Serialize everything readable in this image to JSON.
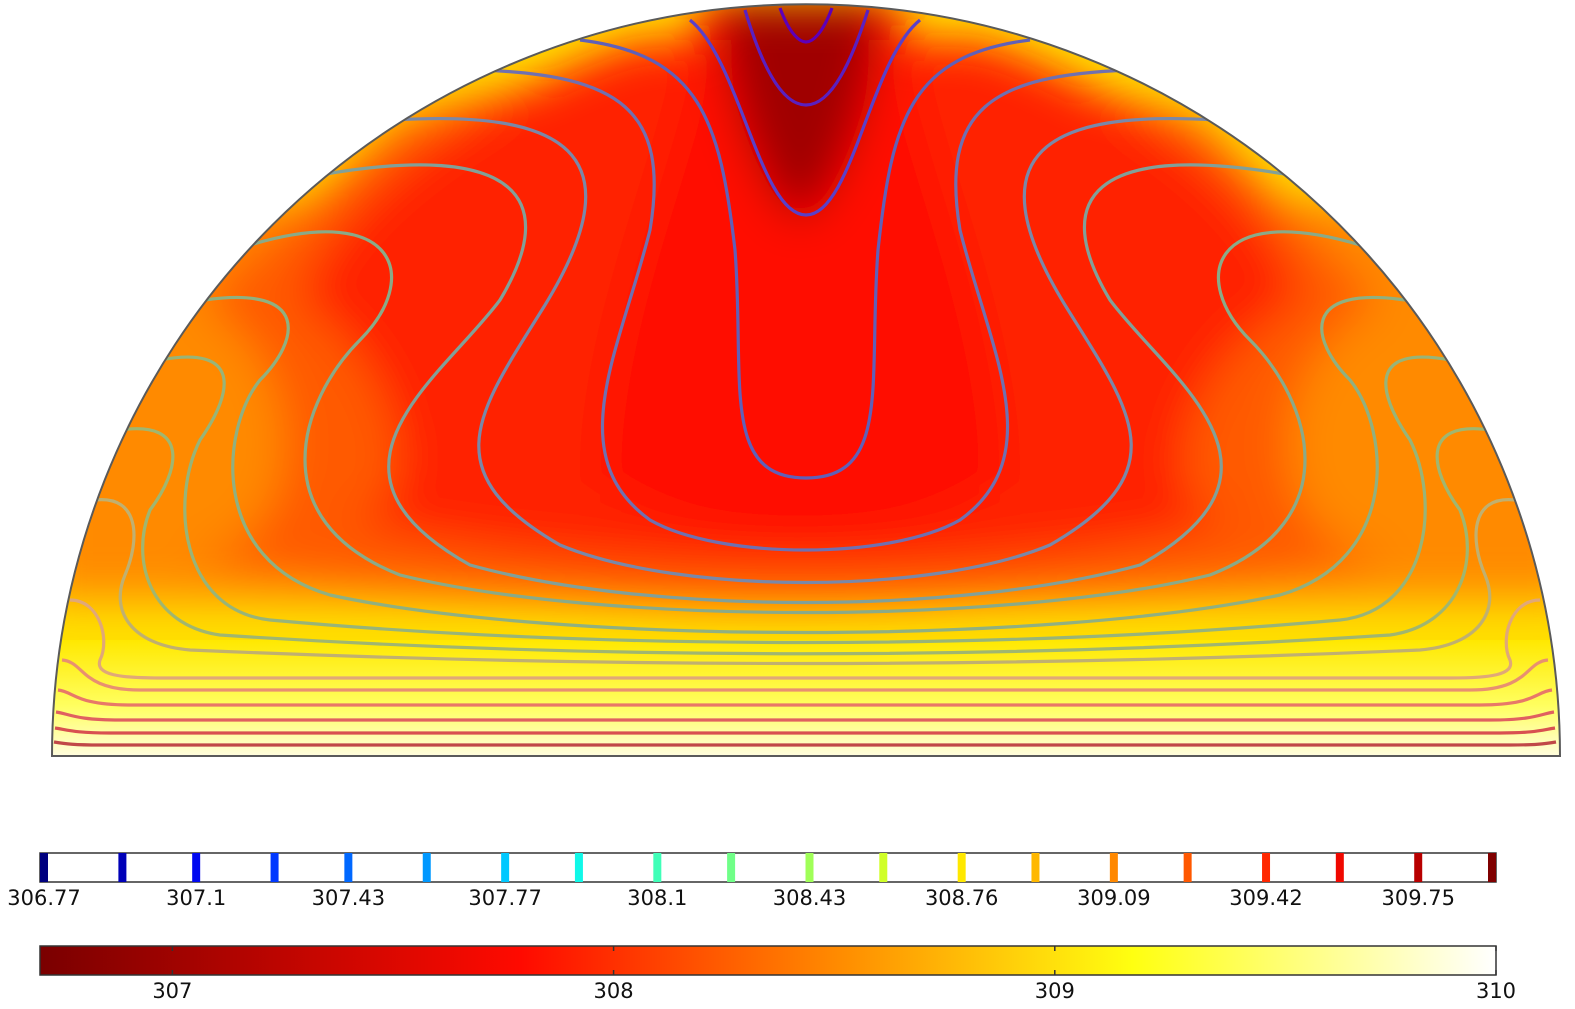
{
  "chart_data": [
    {
      "type": "heatmap",
      "title": "",
      "description_of_domain": "half-disc (semicircular) region",
      "field": "surface",
      "colormap": "heat (dark red to white)",
      "range": [
        306.7,
        310
      ],
      "ticks": [
        307,
        308,
        309,
        310
      ],
      "tick_labels": [
        "307",
        "308",
        "309",
        "310"
      ],
      "xlabel": "",
      "ylabel": "",
      "grid": false,
      "pattern": {
        "max_region": "boundary (bottom edge and sides)",
        "min_region": "top center",
        "features": [
          "central plume of low values from top center",
          "two side rolls of intermediate values"
        ]
      }
    },
    {
      "type": "heatmap",
      "title": "",
      "field": "contour lines",
      "colormap": "rainbow",
      "levels": [
        306.77,
        306.94,
        307.1,
        307.27,
        307.43,
        307.6,
        307.77,
        307.93,
        308.1,
        308.26,
        308.43,
        308.59,
        308.76,
        308.92,
        309.09,
        309.25,
        309.42,
        309.58,
        309.75,
        309.91
      ],
      "tick_labels": [
        "306.77",
        "307.1",
        "307.43",
        "307.77",
        "308.1",
        "308.43",
        "308.76",
        "309.09",
        "309.42",
        "309.75"
      ],
      "level_colors": [
        "#00007f",
        "#0000b8",
        "#0008f0",
        "#0038ff",
        "#0068ff",
        "#0098ff",
        "#00c8ff",
        "#10f8e8",
        "#40ffb8",
        "#70ff88",
        "#a0ff58",
        "#d0ff28",
        "#ffe800",
        "#ffb800",
        "#ff8800",
        "#ff5800",
        "#ff2800",
        "#f00800",
        "#b80000",
        "#7f0000"
      ]
    }
  ]
}
